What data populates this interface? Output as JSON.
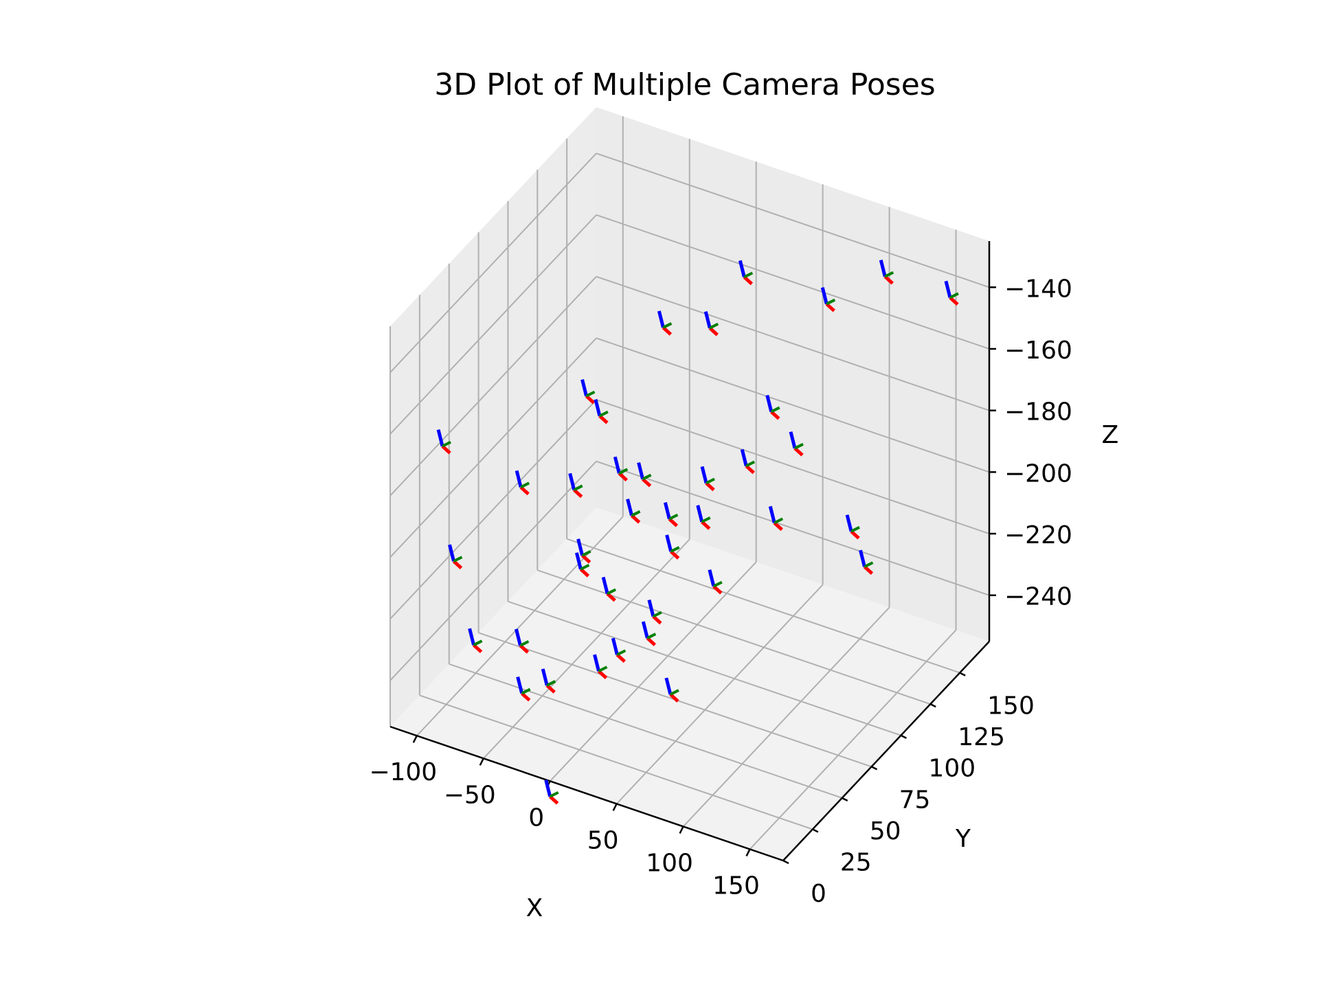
{
  "chart_data": {
    "type": "scatter",
    "title": "3D Plot of Multiple Camera Poses",
    "xlabel": "X",
    "ylabel": "Y",
    "zlabel": "Z",
    "projection": "3d",
    "grid": true,
    "xlim": [
      -120,
      175
    ],
    "ylim": [
      0,
      175
    ],
    "zlim": [
      -255,
      -125
    ],
    "x_ticks": [
      -100,
      -50,
      0,
      50,
      100,
      150
    ],
    "x_tick_labels": [
      "−100",
      "−50",
      "0",
      "50",
      "100",
      "150"
    ],
    "y_ticks": [
      0,
      25,
      50,
      75,
      100,
      125,
      150
    ],
    "y_tick_labels": [
      "0",
      "25",
      "50",
      "75",
      "100",
      "125",
      "150"
    ],
    "z_ticks": [
      -240,
      -220,
      -200,
      -180,
      -160,
      -140
    ],
    "z_tick_labels": [
      "−240",
      "−220",
      "−200",
      "−180",
      "−160",
      "−140"
    ],
    "axis_colors": {
      "x_axis": "#ff0000",
      "y_axis": "#008000",
      "z_axis": "#0000ff"
    },
    "camera_poses": [
      {
        "x": 22,
        "y": 140,
        "z": -145
      },
      {
        "x": -30,
        "y": 130,
        "z": -165
      },
      {
        "x": 5,
        "y": 130,
        "z": -160
      },
      {
        "x": 110,
        "y": 160,
        "z": -140
      },
      {
        "x": 150,
        "y": 170,
        "z": -145
      },
      {
        "x": 75,
        "y": 150,
        "z": -150
      },
      {
        "x": 60,
        "y": 120,
        "z": -175
      },
      {
        "x": 50,
        "y": 110,
        "z": -190
      },
      {
        "x": -35,
        "y": 60,
        "z": -190
      },
      {
        "x": -70,
        "y": 110,
        "z": -185
      },
      {
        "x": -10,
        "y": 70,
        "z": -185
      },
      {
        "x": -60,
        "y": 110,
        "z": -190
      },
      {
        "x": -75,
        "y": 60,
        "z": -195
      },
      {
        "x": -5,
        "y": 75,
        "z": -200
      },
      {
        "x": -20,
        "y": 50,
        "z": -205
      },
      {
        "x": -10,
        "y": 90,
        "z": -195
      },
      {
        "x": -125,
        "y": 50,
        "z": -185
      },
      {
        "x": -90,
        "y": 20,
        "z": -205
      },
      {
        "x": 10,
        "y": 90,
        "z": -205
      },
      {
        "x": 20,
        "y": 110,
        "z": -200
      },
      {
        "x": 20,
        "y": 80,
        "z": -210
      },
      {
        "x": 30,
        "y": 95,
        "z": -205
      },
      {
        "x": 80,
        "y": 100,
        "z": -200
      },
      {
        "x": 120,
        "y": 120,
        "z": -205
      },
      {
        "x": 130,
        "y": 120,
        "z": -215
      },
      {
        "x": -30,
        "y": 60,
        "z": -215
      },
      {
        "x": -75,
        "y": 20,
        "z": -230
      },
      {
        "x": -40,
        "y": 20,
        "z": -225
      },
      {
        "x": -10,
        "y": 60,
        "z": -220
      },
      {
        "x": 20,
        "y": 65,
        "z": -225
      },
      {
        "x": 20,
        "y": 60,
        "z": -230
      },
      {
        "x": 10,
        "y": 30,
        "z": -230
      },
      {
        "x": 15,
        "y": 40,
        "z": -228
      },
      {
        "x": -20,
        "y": 20,
        "z": -235
      },
      {
        "x": -30,
        "y": 10,
        "z": -235
      },
      {
        "x": 55,
        "y": 40,
        "z": -235
      },
      {
        "x": 0,
        "y": 0,
        "z": -260
      },
      {
        "x": 30,
        "y": 105,
        "z": -230
      },
      {
        "x": 60,
        "y": 140,
        "z": -195
      }
    ]
  }
}
